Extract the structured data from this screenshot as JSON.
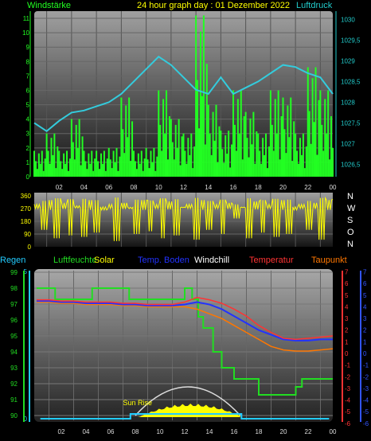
{
  "title": "24 hour graph day : 01 Dezember 2022",
  "colors": {
    "wind": "#22ff22",
    "pressure": "#33ccdd",
    "direction": "#ffff00",
    "temperature": "#ff3333",
    "temp_ground": "#2233ff",
    "dewpoint": "#ff7700",
    "humidity": "#22dd22",
    "solar": "#ffff00",
    "rain": "#22ccff",
    "windchill": "#ffffff",
    "axis_left_top": "#22ff22",
    "axis_right_top": "#22cccc",
    "axis_temp_right_a": "#ff3333",
    "axis_temp_right_b": "#3355ff"
  },
  "chart_data": [
    {
      "type": "line",
      "name": "wind-pressure",
      "left_label": "Windstärke",
      "right_label": "Luftdruck",
      "x_ticks": [
        "02",
        "04",
        "06",
        "08",
        "10",
        "12",
        "14",
        "16",
        "18",
        "20",
        "22",
        "00"
      ],
      "y_left_ticks": [
        "0",
        "1",
        "2",
        "3",
        "4",
        "5",
        "6",
        "7",
        "8",
        "9",
        "10",
        "11"
      ],
      "y_right_ticks": [
        "1026,5",
        "1027",
        "1027,5",
        "1028",
        "1028,5",
        "1029",
        "1029,5",
        "1030"
      ],
      "ylim_left": [
        0,
        11.5
      ],
      "ylim_right": [
        1026.2,
        1030.2
      ],
      "pressure_x": [
        0,
        1,
        2,
        3,
        4,
        5,
        6,
        7,
        8,
        9,
        10,
        11,
        12,
        13,
        14,
        15,
        16,
        17,
        18,
        19,
        20,
        21,
        22,
        23,
        24
      ],
      "pressure_y": [
        1027.5,
        1027.3,
        1027.55,
        1027.75,
        1027.8,
        1027.9,
        1028.0,
        1028.2,
        1028.5,
        1028.8,
        1029.1,
        1028.9,
        1028.6,
        1028.3,
        1028.2,
        1028.6,
        1028.2,
        1028.35,
        1028.5,
        1028.7,
        1028.9,
        1028.85,
        1028.7,
        1028.6,
        1028.2
      ],
      "wind_max": [
        1.8,
        3,
        1.8,
        4,
        1.8,
        1.8,
        2,
        5.5,
        1.8,
        2,
        6,
        4,
        3,
        11.2,
        5,
        3.2,
        6,
        4.5,
        3,
        6,
        5.5,
        3,
        7.6,
        6,
        2
      ],
      "wind_note": "wind gust bars per hour (approx.)"
    },
    {
      "type": "line",
      "name": "wind-direction",
      "y_ticks": [
        "360",
        "270",
        "180",
        "90",
        "0"
      ],
      "y_right_labels": [
        "N",
        "W",
        "S",
        "O",
        "N"
      ],
      "ylim": [
        0,
        360
      ],
      "direction_samples": [
        300,
        120,
        330,
        60,
        310,
        80,
        290,
        70,
        330,
        100,
        260,
        300,
        40,
        310,
        270,
        90,
        330,
        110,
        300,
        60,
        320,
        80,
        280,
        300,
        50,
        330,
        120,
        300,
        90,
        310,
        200,
        280,
        60,
        320,
        100,
        300,
        70,
        330,
        90,
        260,
        300,
        120,
        310,
        50,
        330,
        80
      ]
    },
    {
      "type": "line",
      "name": "temperature-humidity",
      "legend": [
        "Regen",
        "Luftfeuchte",
        "Solar",
        "Temp. Boden",
        "Windchill",
        "Temperatur",
        "Taupunkt"
      ],
      "x_ticks": [
        "02",
        "04",
        "06",
        "08",
        "10",
        "12",
        "14",
        "16",
        "18",
        "20",
        "22",
        "00"
      ],
      "y_left_ticks": [
        "90",
        "91",
        "92",
        "93",
        "94",
        "95",
        "96",
        "97",
        "98",
        "99"
      ],
      "y_rain_ticks": [
        "0",
        "5"
      ],
      "y_right_ticks": [
        "7",
        "6",
        "5",
        "4",
        "3",
        "2",
        "1",
        "0",
        "-1",
        "-2",
        "-3",
        "-4",
        "-5",
        "-6"
      ],
      "ylim_left": [
        89.8,
        99.1
      ],
      "ylim_right": [
        -5.6,
        7.1
      ],
      "annotation": "Sun Rise",
      "x": [
        0,
        1,
        2,
        3,
        4,
        5,
        6,
        7,
        8,
        9,
        10,
        11,
        12,
        13,
        14,
        15,
        16,
        17,
        18,
        19,
        20,
        21,
        22,
        23,
        24
      ],
      "temperature": [
        4.6,
        4.6,
        4.5,
        4.5,
        4.4,
        4.4,
        4.4,
        4.3,
        4.3,
        4.2,
        4.2,
        4.2,
        4.4,
        4.8,
        4.6,
        4.3,
        3.8,
        3.2,
        2.4,
        1.8,
        1.3,
        1.2,
        1.3,
        1.4,
        1.5
      ],
      "temp_ground": [
        4.5,
        4.5,
        4.4,
        4.4,
        4.3,
        4.3,
        4.3,
        4.2,
        4.2,
        4.1,
        4.1,
        4.1,
        4.2,
        4.4,
        4.2,
        3.8,
        3.2,
        2.6,
        2.0,
        1.6,
        1.2,
        1.1,
        1.1,
        1.2,
        1.2
      ],
      "dewpoint": [
        4.4,
        4.4,
        4.3,
        4.3,
        4.2,
        4.2,
        4.2,
        4.1,
        4.1,
        4.0,
        4.0,
        4.0,
        4.0,
        3.8,
        3.4,
        3.0,
        2.4,
        1.8,
        1.2,
        0.6,
        0.3,
        0.2,
        0.2,
        0.3,
        0.4
      ],
      "humidity_x": [
        0,
        1.5,
        1.5,
        4.5,
        4.5,
        7.5,
        7.5,
        9,
        9,
        12,
        12,
        12.6,
        12.6,
        13.1,
        13.1,
        13.5,
        13.5,
        14.3,
        14.3,
        15,
        15,
        16,
        16,
        18,
        18,
        21,
        21,
        21.5,
        21.5,
        24
      ],
      "humidity": [
        98,
        98,
        97.3,
        97.3,
        98,
        98,
        97.3,
        97.3,
        97.3,
        97.3,
        98,
        98,
        97.3,
        97.3,
        96.2,
        96.2,
        95.5,
        95.5,
        94,
        94,
        93,
        93,
        92.3,
        92.3,
        91.3,
        91.3,
        91.8,
        91.8,
        92.3,
        92.3
      ],
      "solar_peak_hour": 12.5,
      "sunrise_hour": 8.0,
      "sunset_hour": 16.5
    }
  ]
}
